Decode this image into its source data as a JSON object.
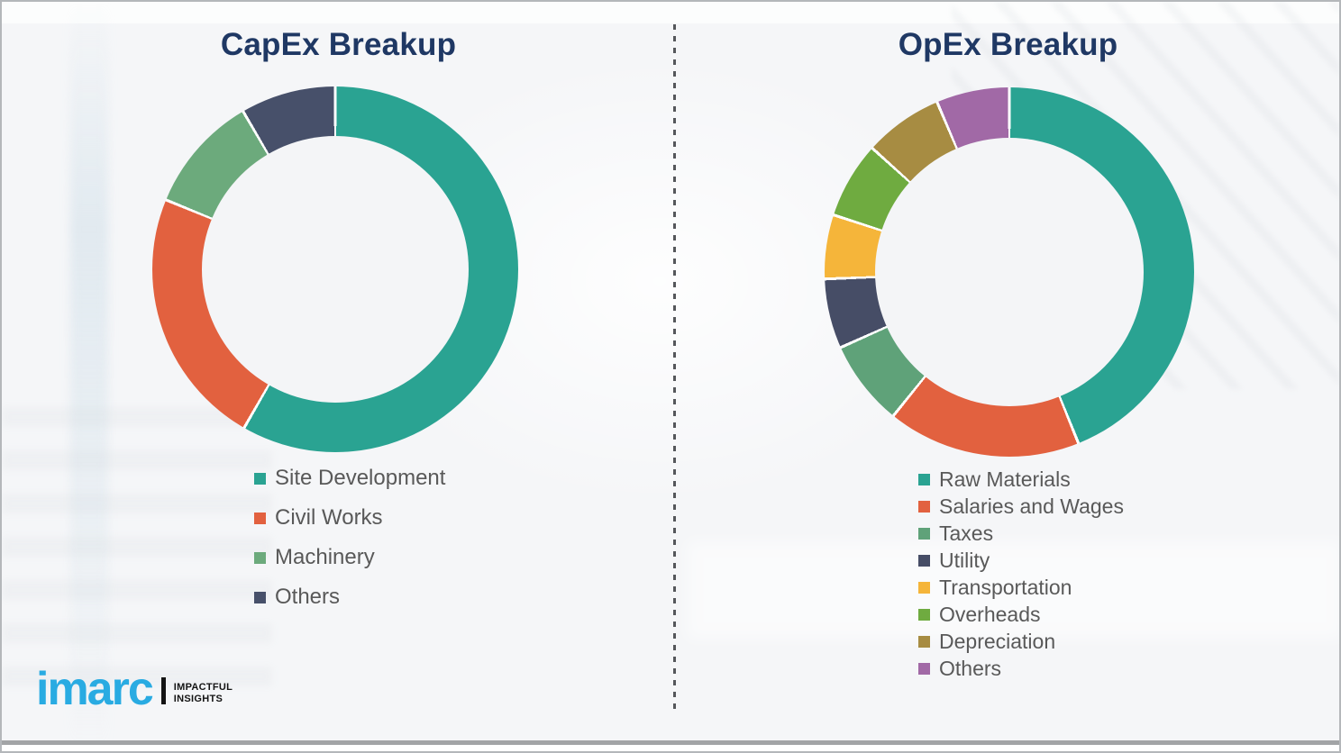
{
  "branding": {
    "logo_text": "imarc",
    "tagline_line1": "IMPACTFUL",
    "tagline_line2": "INSIGHTS",
    "logo_color": "#29ABE2"
  },
  "colors": {
    "title_text": "#1F3864",
    "legend_text": "#595959",
    "divider": "#55575B",
    "background": "#F5F6F8",
    "segment_gap": "#FFFFFF"
  },
  "chart_data": [
    {
      "type": "pie",
      "variant": "donut",
      "title": "CapEx Breakup",
      "labels": [
        "Site Development",
        "Civil Works",
        "Machinery",
        "Others"
      ],
      "values_percent": [
        58.3,
        22.9,
        10.4,
        8.4
      ],
      "colors": [
        "#2AA392",
        "#E2613F",
        "#6CAA7C",
        "#47506A"
      ],
      "start_angle_deg": 0,
      "direction": "clockwise",
      "legend_position": "below-left",
      "data_labels": false
    },
    {
      "type": "pie",
      "variant": "donut",
      "title": "OpEx Breakup",
      "labels": [
        "Raw Materials",
        "Salaries and Wages",
        "Taxes",
        "Utility",
        "Transportation",
        "Overheads",
        "Depreciation",
        "Others"
      ],
      "values_percent": [
        43.9,
        16.9,
        7.5,
        6.1,
        5.6,
        6.7,
        6.9,
        6.4
      ],
      "colors": [
        "#2AA392",
        "#E2613F",
        "#5FA279",
        "#464D66",
        "#F5B53A",
        "#6FAB40",
        "#A78C42",
        "#A169A6"
      ],
      "start_angle_deg": 0,
      "direction": "clockwise",
      "legend_position": "below-left",
      "data_labels": false
    }
  ]
}
